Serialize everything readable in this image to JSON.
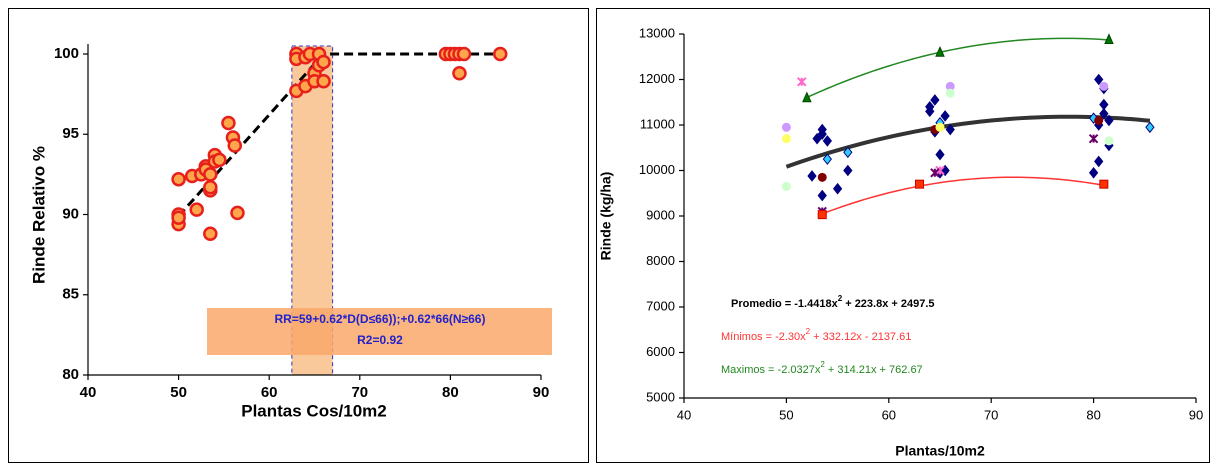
{
  "chart_data": [
    {
      "type": "scatter",
      "x_label": "Plantas Cos/10m2",
      "y_label": "Rinde Relativo %",
      "xlim": [
        40,
        90
      ],
      "xticks": [
        40,
        50,
        60,
        70,
        80,
        90
      ],
      "ylim": [
        80,
        100
      ],
      "yticks": [
        80,
        85,
        90,
        95,
        100
      ],
      "series": [
        {
          "color": "#ffa64d",
          "edge_color": "#e8201c",
          "marker": "circle",
          "x": [
            50,
            50,
            50,
            50,
            51.5,
            52,
            52.5,
            53,
            53,
            53.5,
            53.5,
            53.5,
            53.5,
            54,
            54,
            54.5,
            55.5,
            56,
            56.2,
            56.5,
            63,
            63,
            63,
            64,
            64,
            64.5,
            65,
            65,
            65.5,
            65.5,
            66,
            66,
            79.5,
            80,
            80.5,
            81,
            81,
            81.5,
            85.5
          ],
          "values": [
            92.2,
            90,
            89.4,
            89.8,
            92.4,
            90.3,
            92.5,
            93,
            92.8,
            92.5,
            91.5,
            91.7,
            88.8,
            93.7,
            93.3,
            93.4,
            95.7,
            94.8,
            94.3,
            90.1,
            100,
            99.7,
            97.7,
            98,
            99.8,
            100,
            98.8,
            98.3,
            100,
            99.3,
            98.3,
            99.5,
            100,
            100,
            100,
            100,
            98.8,
            100,
            100
          ]
        }
      ],
      "trend": {
        "color": "#000000",
        "x": [
          50,
          66,
          85.5
        ],
        "values": [
          89.9,
          100,
          100
        ]
      },
      "band": {
        "x": [
          62.5,
          67
        ],
        "y": [
          80,
          100.5
        ],
        "color": "#f9c89b",
        "edge_color": "#3333cc"
      },
      "annotation": {
        "lines": [
          "RR=59+0.62*D(D≤66));+0.62*66(N≥66)",
          "R2=0.92"
        ],
        "color": "#2222cc",
        "box_color": "#f9a86a"
      }
    },
    {
      "type": "scatter",
      "x_label": "Plantas/10m2",
      "y_label": "Rinde (kg/ha)",
      "xlim": [
        40,
        90
      ],
      "xticks": [
        40,
        50,
        60,
        70,
        80,
        90
      ],
      "ylim": [
        5000,
        13000
      ],
      "yticks": [
        5000,
        6000,
        7000,
        8000,
        9000,
        10000,
        11000,
        12000,
        13000
      ],
      "series": [
        {
          "color": "#000080",
          "marker": "diamond",
          "x": [
            52.5,
            53,
            53.5,
            53.5,
            53.5,
            54,
            55,
            56,
            64,
            64.5,
            64,
            64.5,
            65,
            65,
            65.5,
            65.5,
            66,
            80,
            80.5,
            80.5,
            81,
            81,
            81,
            81.5,
            81.5,
            80.5
          ],
          "values": [
            9880,
            10700,
            10900,
            10800,
            9450,
            10650,
            9600,
            10000,
            11400,
            11550,
            11300,
            10850,
            10350,
            9950,
            10000,
            11200,
            10900,
            9950,
            10200,
            11000,
            11800,
            11450,
            11250,
            11100,
            10550,
            12000
          ]
        },
        {
          "color": "#33ccff",
          "marker": "xdiamond",
          "x": [
            54,
            56,
            65,
            85.5,
            80
          ],
          "values": [
            10250,
            10400,
            11050,
            10950,
            11150
          ]
        },
        {
          "color": "#cc99ff",
          "marker": "circle",
          "x": [
            50,
            66,
            81
          ],
          "values": [
            10950,
            11850,
            11850
          ]
        },
        {
          "color": "#ff66cc",
          "marker": "x",
          "x": [
            51.5,
            65
          ],
          "values": [
            11950,
            10000
          ]
        },
        {
          "color": "#ccffcc",
          "marker": "circle",
          "x": [
            50,
            66,
            81.5
          ],
          "values": [
            9650,
            11700,
            10650
          ]
        },
        {
          "color": "#800000",
          "marker": "circle",
          "x": [
            53.5,
            64.5,
            80.5
          ],
          "values": [
            9850,
            10900,
            11100
          ]
        },
        {
          "color": "#ffff66",
          "marker": "circle",
          "x": [
            50,
            65
          ],
          "values": [
            10700,
            10950
          ]
        },
        {
          "color": "#660066",
          "marker": "x",
          "x": [
            53.5,
            80,
            64.5
          ],
          "values": [
            9100,
            10700,
            9950
          ]
        },
        {
          "color": "#ff3300",
          "marker": "square",
          "x": [
            53.5,
            63,
            81
          ],
          "values": [
            9030,
            9700,
            9700
          ]
        },
        {
          "color": "#007700",
          "marker": "triangle",
          "x": [
            52,
            65,
            81.5
          ],
          "values": [
            11600,
            12600,
            12880
          ]
        }
      ],
      "curves": [
        {
          "color": "#333333",
          "width": 4,
          "coefficients": [
            -1.4418,
            223.8,
            2497.5
          ],
          "x_range": [
            50,
            85.5
          ],
          "equation": [
            "Promedio = -1.4418x",
            "2",
            " + 223.8x + 2497.5"
          ],
          "bold": true
        },
        {
          "color": "#ff3333",
          "width": 1.5,
          "coefficients": [
            -2.3,
            332.12,
            -2137.61
          ],
          "x_range": [
            53.5,
            81
          ],
          "equation": [
            "Mínimos = -2.30x",
            "2",
            " + 332.12x - 2137.61"
          ],
          "bold": false
        },
        {
          "color": "#228822",
          "width": 1.5,
          "coefficients": [
            -2.0327,
            314.21,
            762.67
          ],
          "x_range": [
            52,
            81.5
          ],
          "equation": [
            "Maximos = -2.0327x",
            "2",
            " + 314.21x + 762.67"
          ],
          "bold": false
        }
      ]
    }
  ]
}
